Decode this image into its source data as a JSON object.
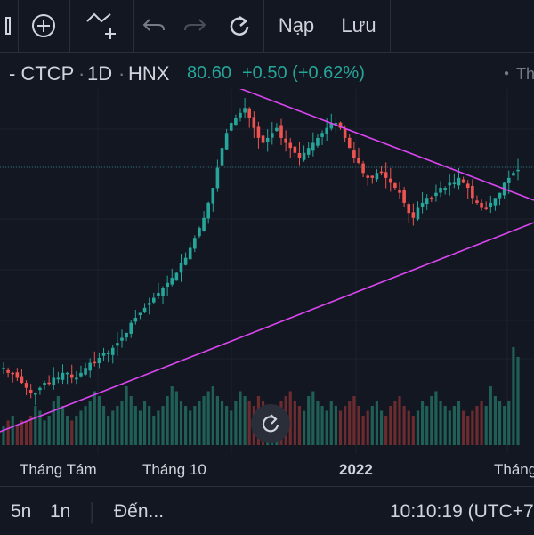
{
  "toolbar": {
    "load_label": "Nạp",
    "save_label": "Lưu",
    "icons": [
      "chart-icon",
      "add-icon",
      "indicator-icon",
      "undo-icon",
      "redo-icon",
      "reset-icon"
    ]
  },
  "legend": {
    "symbol_suffix": "- CTCP",
    "interval": "1D",
    "exchange": "HNX",
    "price": "80.60",
    "change": "+0.50 (+0.62%)",
    "right_label": "Th",
    "up_color": "#26a69a",
    "down_color": "#ef5350",
    "trendline_color": "#d946ef"
  },
  "xaxis": {
    "labels": [
      "Tháng Tám",
      "Tháng 10",
      "2022",
      "Tháng"
    ]
  },
  "bottombar": {
    "range_5y": "5n",
    "range_1y": "1n",
    "goto": "Đến...",
    "clock": "10:10:19 (UTC+7"
  },
  "chart_data": {
    "type": "candlestick",
    "close_series": [
      41,
      40,
      40,
      39,
      38,
      37,
      36,
      36,
      37,
      38,
      38,
      39,
      39,
      40,
      40,
      39,
      39,
      40,
      41,
      42,
      42,
      43,
      44,
      44,
      45,
      46,
      47,
      48,
      50,
      51,
      52,
      53,
      54,
      55,
      56,
      57,
      58,
      59,
      60,
      62,
      63,
      65,
      67,
      69,
      71,
      74,
      77,
      81,
      85,
      88,
      90,
      91,
      92,
      93,
      91,
      89,
      87,
      86,
      87,
      88,
      89,
      87,
      86,
      85,
      84,
      83,
      84,
      85,
      86,
      87,
      88,
      89,
      90,
      90,
      89,
      87,
      85,
      83,
      82,
      80,
      79,
      79,
      80,
      80,
      79,
      78,
      77,
      76,
      74,
      72,
      71,
      73,
      74,
      75,
      75,
      76,
      77,
      77,
      78,
      78,
      79,
      78,
      77,
      75,
      74,
      73,
      73,
      74,
      75,
      76,
      78,
      79,
      80,
      80.6
    ],
    "volume_series": [
      4,
      5,
      6,
      4,
      5,
      5,
      6,
      8,
      7,
      5,
      6,
      9,
      10,
      8,
      6,
      5,
      6,
      7,
      8,
      9,
      11,
      10,
      8,
      6,
      7,
      8,
      9,
      12,
      10,
      8,
      7,
      9,
      8,
      6,
      7,
      8,
      10,
      12,
      11,
      9,
      8,
      7,
      8,
      9,
      10,
      11,
      12,
      10,
      9,
      8,
      7,
      9,
      11,
      10,
      9,
      8,
      10,
      9,
      8,
      7,
      8,
      9,
      10,
      11,
      9,
      8,
      7,
      10,
      11,
      9,
      8,
      7,
      9,
      8,
      7,
      8,
      9,
      10,
      8,
      6,
      7,
      8,
      9,
      7,
      6,
      8,
      9,
      10,
      8,
      7,
      6,
      7,
      9,
      8,
      10,
      11,
      9,
      8,
      7,
      8,
      9,
      7,
      6,
      7,
      8,
      9,
      8,
      12,
      10,
      9,
      8,
      9,
      20,
      18
    ],
    "trendlines": [
      {
        "from": [
          0,
          0
        ],
        "to": [
          1,
          0
        ],
        "role": "upper"
      },
      {
        "from": [
          0,
          0
        ],
        "to": [
          1,
          0
        ],
        "role": "lower"
      }
    ]
  }
}
